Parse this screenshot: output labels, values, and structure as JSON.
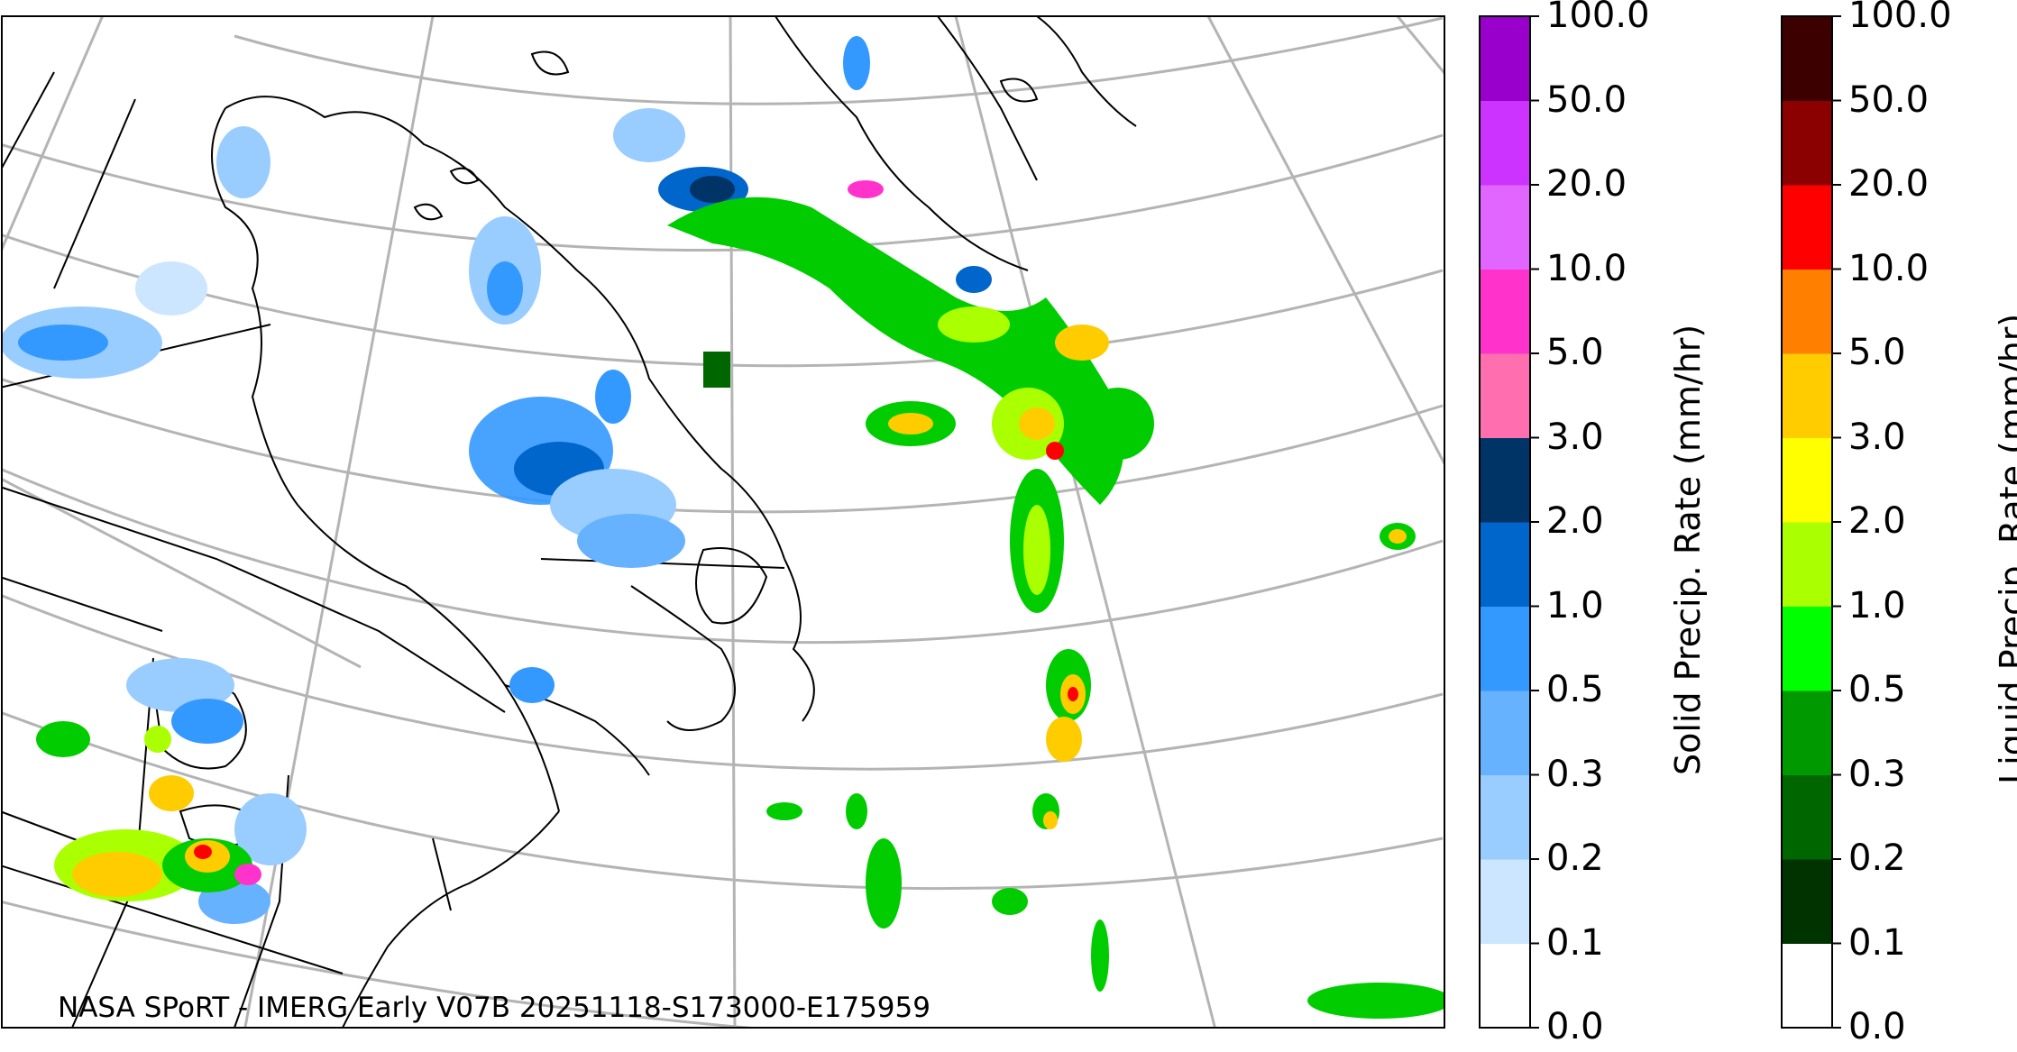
{
  "map": {
    "credit": "NASA SPoRT - IMERG Early V07B 20251118-S173000-E175959"
  },
  "colorbars": [
    {
      "name": "solid",
      "title": "Solid Precip. Rate (mm/hr)",
      "ticks": [
        "0.0",
        "0.1",
        "0.2",
        "0.3",
        "0.5",
        "1.0",
        "2.0",
        "3.0",
        "5.0",
        "10.0",
        "20.0",
        "50.0",
        "100.0"
      ],
      "colors": [
        "#ffffff",
        "#cce6ff",
        "#99ccff",
        "#66b2ff",
        "#3399ff",
        "#0066cc",
        "#003366",
        "#ff6fb0",
        "#ff33cc",
        "#e066ff",
        "#cc33ff",
        "#9900cc"
      ]
    },
    {
      "name": "liquid",
      "title": "Liquid Precip. Rate (mm/hr)",
      "ticks": [
        "0.0",
        "0.1",
        "0.2",
        "0.3",
        "0.5",
        "1.0",
        "2.0",
        "3.0",
        "5.0",
        "10.0",
        "20.0",
        "50.0",
        "100.0"
      ],
      "colors": [
        "#ffffff",
        "#003300",
        "#006600",
        "#009900",
        "#00ff00",
        "#aaff00",
        "#ffff00",
        "#ffcc00",
        "#ff8000",
        "#ff0000",
        "#8b0000",
        "#3d0000"
      ]
    }
  ],
  "precip_colors": {
    "light_snow": "#99ccff",
    "mid_snow": "#3399ff",
    "heavy_snow": "#0066cc",
    "very_heavy_snow": "#003366",
    "light_rain": "#00cc00",
    "mid_rain": "#aaff00",
    "heavy_rain": "#ffcc00",
    "very_heavy_rain": "#ff0000",
    "mixed_heavy": "#ff33cc"
  }
}
